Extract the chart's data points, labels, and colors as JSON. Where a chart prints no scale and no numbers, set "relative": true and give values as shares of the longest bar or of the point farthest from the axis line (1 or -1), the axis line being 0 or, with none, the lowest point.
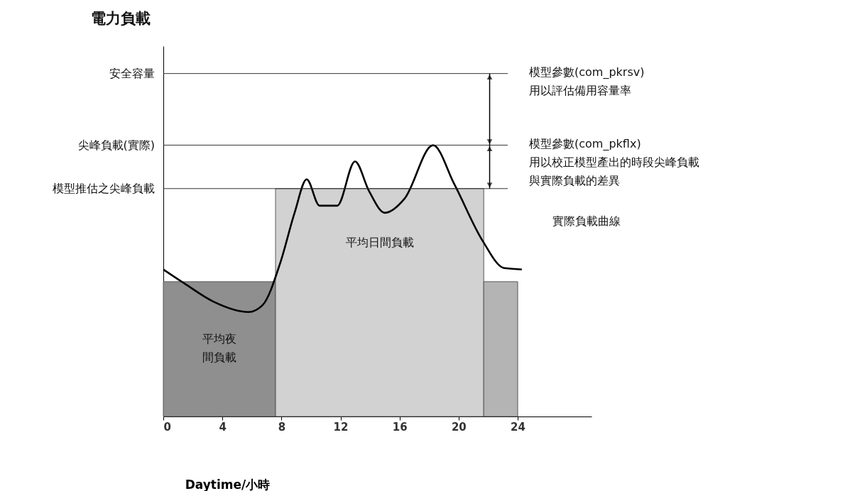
{
  "chart_data": {
    "type": "histogram",
    "relative": true,
    "xlabel": "Daytime/小時",
    "bins": [
      0,
      7.6,
      21.7,
      24
    ],
    "values": [
      0.497,
      0.84,
      0.497
    ],
    "colors": [
      "#8f8f8f",
      "#d2d2d2",
      "#b4b4b4"
    ],
    "series": [
      {
        "type": "line",
        "color": "#000000",
        "x": [
          0,
          1.44,
          3.37,
          5.77,
          6.73,
          7.93,
          8.89,
          9.71,
          10.58,
          11.78,
          12.98,
          13.94,
          15.0,
          16.35,
          18.27,
          19.71,
          21.63,
          23.08,
          24.28
        ],
        "values": [
          0.542,
          0.49,
          0.424,
          0.385,
          0.411,
          0.568,
          0.751,
          0.874,
          0.777,
          0.777,
          0.94,
          0.83,
          0.751,
          0.804,
          1.0,
          0.856,
          0.647,
          0.547,
          0.542
        ]
      }
    ],
    "xlim": [
      0,
      29
    ],
    "xticks": [
      0,
      4,
      8,
      12,
      16,
      20,
      24
    ],
    "grid": false,
    "ref_lines": [
      {
        "axis": "y",
        "value": 1.264,
        "label": "安全容量",
        "color": "#333333"
      },
      {
        "axis": "y",
        "value": 1.0,
        "label": "尖峰負載(實際)",
        "color": "#333333"
      },
      {
        "axis": "y",
        "value": 0.84,
        "label": "模型推估之尖峰負載",
        "color": "#333333"
      }
    ],
    "annotations": [
      "模型參數(com_pkrsv)\n用以評估備用容量率",
      "模型參數(com_pkflx)\n用以校正模型產出的時段尖峰負載與實際負載的差異",
      "實際負載曲線",
      "平均日間負載",
      "平均夜間負載",
      "電力負載"
    ]
  }
}
